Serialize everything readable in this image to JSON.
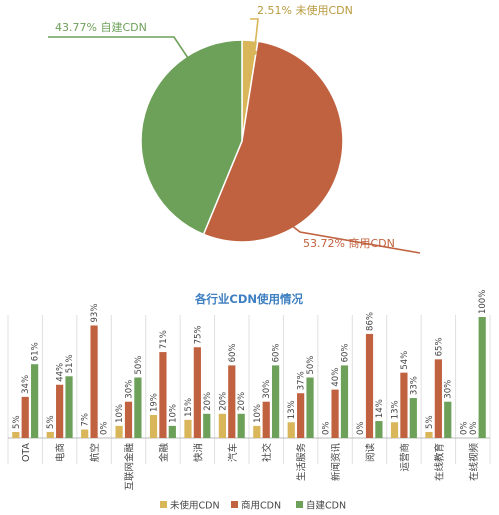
{
  "colors": {
    "unused": "#D9B65A",
    "commercial": "#C0613F",
    "self_built": "#6DA15A",
    "title": "#3E7FC1",
    "text": "#444444",
    "gridline": "#E0E0E0",
    "axis": "#BBBBBB"
  },
  "chart_data": [
    {
      "type": "pie",
      "slices": [
        {
          "label": "未使用CDN",
          "value": 2.51,
          "value_label": "2.51%"
        },
        {
          "label": "商用CDN",
          "value": 53.72,
          "value_label": "53.72%"
        },
        {
          "label": "自建CDN",
          "value": 43.77,
          "value_label": "43.77%"
        }
      ]
    },
    {
      "type": "bar",
      "title": "各行业CDN使用情况",
      "ylim": [
        0,
        100
      ],
      "categories": [
        "OTA",
        "电商",
        "航空",
        "互联网金融",
        "金融",
        "快消",
        "汽车",
        "社交",
        "生活服务",
        "新闻资讯",
        "阅读",
        "运营商",
        "在线教育",
        "在线视频"
      ],
      "series": [
        {
          "name": "未使用CDN",
          "values": [
            5,
            5,
            7,
            10,
            19,
            15,
            20,
            10,
            13,
            0,
            0,
            13,
            5,
            0
          ],
          "labels": [
            "5%",
            "5%",
            "7%",
            "10%",
            "19%",
            "15%",
            "20%",
            "10%",
            "13%",
            "0%",
            "0%",
            "13%",
            "5%",
            "0%"
          ]
        },
        {
          "name": "商用CDN",
          "values": [
            34,
            44,
            93,
            30,
            71,
            75,
            60,
            30,
            37,
            40,
            86,
            54,
            65,
            0
          ],
          "labels": [
            "34%",
            "44%",
            "93%",
            "30%",
            "71%",
            "75%",
            "60%",
            "30%",
            "37%",
            "40%",
            "86%",
            "54%",
            "65%",
            "0%"
          ]
        },
        {
          "name": "自建CDN",
          "values": [
            61,
            51,
            0,
            50,
            10,
            20,
            20,
            60,
            50,
            60,
            14,
            33,
            30,
            100
          ],
          "labels": [
            "61%",
            "51%",
            "0%",
            "50%",
            "10%",
            "20%",
            "20%",
            "60%",
            "50%",
            "60%",
            "14%",
            "33%",
            "30%",
            "100%"
          ]
        }
      ],
      "legend_position": "bottom",
      "grid": "vertical separators"
    }
  ]
}
